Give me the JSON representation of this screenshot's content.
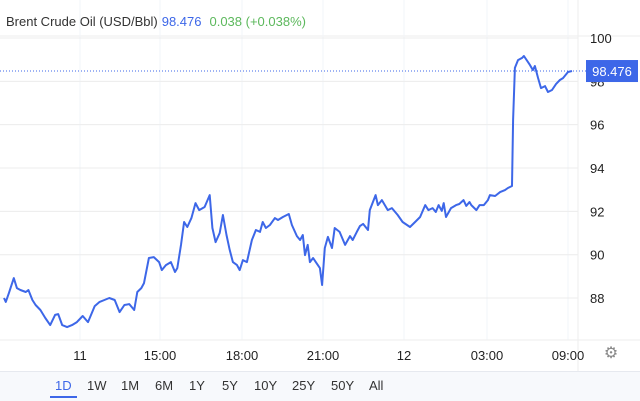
{
  "header": {
    "title": "Brent Crude Oil (USD/Bbl)",
    "price": "98.476",
    "change": "0.038 (+0.038%)"
  },
  "colors": {
    "line": "#3d67e8",
    "price": "#3d67e8",
    "change": "#5cb85c",
    "grid": "#ececec"
  },
  "ranges": [
    "1D",
    "1W",
    "1M",
    "6M",
    "1Y",
    "5Y",
    "10Y",
    "25Y",
    "50Y",
    "All"
  ],
  "active_range": "1D",
  "settings_icon": "gear-icon",
  "chart_data": {
    "type": "line",
    "title": "",
    "ylim": [
      86,
      100.5
    ],
    "yticks": [
      100,
      98,
      96,
      94,
      92,
      90,
      88
    ],
    "xticks": [
      {
        "label": "11",
        "time": "11 12:00"
      },
      {
        "label": "15:00",
        "time": "11 15:00"
      },
      {
        "label": "18:00",
        "time": "11 18:00"
      },
      {
        "label": "21:00",
        "time": "11 21:00"
      },
      {
        "label": "12",
        "time": "12 00:00"
      },
      {
        "label": "03:00",
        "time": "12 03:00"
      },
      {
        "label": "09:00",
        "time": "12 09:00"
      }
    ],
    "current_value": 98.476,
    "current_label": "98.476",
    "grid": true,
    "series": [
      {
        "points": [
          [
            "11 09:09",
            88.0
          ],
          [
            "11 09:13",
            87.82
          ],
          [
            "11 09:20",
            88.23
          ],
          [
            "11 09:31",
            88.92
          ],
          [
            "11 09:38",
            88.46
          ],
          [
            "11 09:46",
            88.37
          ],
          [
            "11 09:58",
            88.28
          ],
          [
            "11 10:04",
            88.37
          ],
          [
            "11 10:13",
            87.91
          ],
          [
            "11 10:20",
            87.68
          ],
          [
            "11 10:31",
            87.45
          ],
          [
            "11 10:42",
            87.08
          ],
          [
            "11 10:53",
            86.75
          ],
          [
            "11 11:04",
            87.22
          ],
          [
            "11 11:11",
            87.26
          ],
          [
            "11 11:20",
            86.75
          ],
          [
            "11 11:31",
            86.66
          ],
          [
            "11 11:42",
            86.75
          ],
          [
            "11 11:53",
            86.89
          ],
          [
            "11 12:06",
            87.17
          ],
          [
            "11 12:18",
            86.89
          ],
          [
            "11 12:33",
            87.63
          ],
          [
            "11 12:44",
            87.82
          ],
          [
            "11 12:55",
            87.91
          ],
          [
            "11 13:06",
            88.0
          ],
          [
            "11 13:18",
            87.91
          ],
          [
            "11 13:29",
            87.35
          ],
          [
            "11 13:40",
            87.68
          ],
          [
            "11 13:51",
            87.72
          ],
          [
            "11 14:02",
            87.45
          ],
          [
            "11 14:09",
            88.28
          ],
          [
            "11 14:18",
            88.46
          ],
          [
            "11 14:24",
            88.69
          ],
          [
            "11 14:35",
            89.85
          ],
          [
            "11 14:46",
            89.89
          ],
          [
            "11 14:58",
            89.66
          ],
          [
            "11 15:04",
            89.29
          ],
          [
            "11 15:13",
            89.52
          ],
          [
            "11 15:24",
            89.66
          ],
          [
            "11 15:33",
            89.2
          ],
          [
            "11 15:38",
            89.38
          ],
          [
            "11 15:46",
            90.45
          ],
          [
            "11 15:53",
            91.51
          ],
          [
            "11 16:00",
            91.28
          ],
          [
            "11 16:09",
            91.69
          ],
          [
            "11 16:18",
            92.38
          ],
          [
            "11 16:26",
            92.06
          ],
          [
            "11 16:38",
            92.2
          ],
          [
            "11 16:49",
            92.75
          ],
          [
            "11 16:55",
            91.23
          ],
          [
            "11 17:02",
            90.58
          ],
          [
            "11 17:11",
            91.0
          ],
          [
            "11 17:18",
            91.83
          ],
          [
            "11 17:26",
            90.91
          ],
          [
            "11 17:33",
            90.22
          ],
          [
            "11 17:40",
            89.66
          ],
          [
            "11 17:49",
            89.52
          ],
          [
            "11 17:55",
            89.29
          ],
          [
            "11 18:02",
            89.75
          ],
          [
            "11 18:11",
            89.66
          ],
          [
            "11 18:22",
            90.68
          ],
          [
            "11 18:31",
            91.14
          ],
          [
            "11 18:40",
            91.05
          ],
          [
            "11 18:46",
            91.51
          ],
          [
            "11 18:53",
            91.23
          ],
          [
            "11 19:02",
            91.37
          ],
          [
            "11 19:13",
            91.69
          ],
          [
            "11 19:20",
            91.6
          ],
          [
            "11 19:31",
            91.74
          ],
          [
            "11 19:44",
            91.88
          ],
          [
            "11 19:51",
            91.37
          ],
          [
            "11 20:02",
            90.86
          ],
          [
            "11 20:09",
            90.68
          ],
          [
            "11 20:15",
            90.91
          ],
          [
            "11 20:20",
            89.98
          ],
          [
            "11 20:26",
            90.45
          ],
          [
            "11 20:31",
            89.66
          ],
          [
            "11 20:38",
            89.85
          ],
          [
            "11 20:44",
            89.66
          ],
          [
            "11 20:53",
            89.38
          ],
          [
            "11 20:58",
            88.6
          ],
          [
            "11 21:04",
            90.31
          ],
          [
            "11 21:11",
            90.82
          ],
          [
            "11 21:20",
            90.31
          ],
          [
            "11 21:26",
            91.23
          ],
          [
            "11 21:37",
            91.05
          ],
          [
            "11 21:49",
            90.45
          ],
          [
            "11 22:00",
            90.86
          ],
          [
            "11 22:06",
            90.68
          ],
          [
            "11 22:15",
            91.05
          ],
          [
            "11 22:22",
            91.32
          ],
          [
            "11 22:29",
            91.42
          ],
          [
            "11 22:40",
            91.14
          ],
          [
            "11 22:44",
            92.06
          ],
          [
            "11 22:57",
            92.75
          ],
          [
            "11 23:02",
            92.29
          ],
          [
            "11 23:11",
            92.52
          ],
          [
            "11 23:24",
            92.06
          ],
          [
            "11 23:33",
            92.15
          ],
          [
            "11 23:46",
            91.83
          ],
          [
            "11 23:57",
            91.51
          ],
          [
            "12 00:13",
            91.28
          ],
          [
            "12 00:24",
            91.51
          ],
          [
            "12 00:35",
            91.74
          ],
          [
            "12 00:46",
            92.29
          ],
          [
            "12 00:53",
            92.06
          ],
          [
            "12 01:02",
            92.15
          ],
          [
            "12 01:09",
            91.97
          ],
          [
            "12 01:15",
            92.29
          ],
          [
            "12 01:22",
            92.02
          ],
          [
            "12 01:26",
            92.38
          ],
          [
            "12 01:31",
            91.74
          ],
          [
            "12 01:42",
            92.15
          ],
          [
            "12 01:53",
            92.29
          ],
          [
            "12 02:00",
            92.34
          ],
          [
            "12 02:09",
            92.52
          ],
          [
            "12 02:15",
            92.25
          ],
          [
            "12 02:22",
            92.43
          ],
          [
            "12 02:26",
            92.29
          ],
          [
            "12 02:37",
            92.06
          ],
          [
            "12 02:44",
            92.29
          ],
          [
            "12 02:53",
            92.29
          ],
          [
            "12 03:04",
            92.52
          ],
          [
            "12 03:13",
            92.75
          ],
          [
            "12 03:36",
            92.71
          ],
          [
            "12 03:58",
            92.89
          ],
          [
            "12 04:20",
            92.98
          ],
          [
            "12 04:33",
            93.08
          ],
          [
            "12 04:51",
            93.17
          ],
          [
            "12 04:56",
            96.22
          ],
          [
            "12 05:04",
            98.62
          ],
          [
            "12 05:18",
            98.98
          ],
          [
            "12 05:36",
            99.08
          ],
          [
            "12 05:44",
            99.17
          ],
          [
            "12 06:02",
            98.89
          ],
          [
            "12 06:11",
            98.75
          ],
          [
            "12 06:24",
            98.52
          ],
          [
            "12 06:33",
            98.71
          ],
          [
            "12 06:47",
            98.15
          ],
          [
            "12 07:00",
            97.69
          ],
          [
            "12 07:18",
            97.78
          ],
          [
            "12 07:31",
            97.51
          ],
          [
            "12 07:49",
            97.6
          ],
          [
            "12 08:07",
            97.88
          ],
          [
            "12 08:24",
            98.06
          ],
          [
            "12 08:38",
            98.15
          ],
          [
            "12 09:00",
            98.43
          ],
          [
            "12 09:18",
            98.476
          ]
        ]
      }
    ]
  }
}
